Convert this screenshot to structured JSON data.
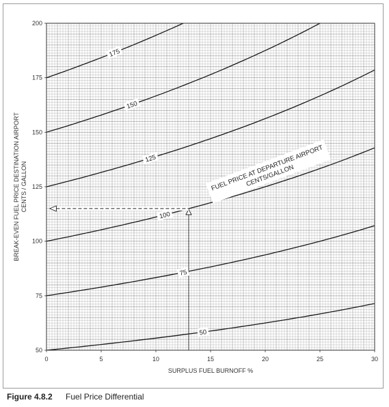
{
  "figure": {
    "number": "Figure 4.8.2",
    "title": "Fuel Price Differential"
  },
  "chart_data": {
    "type": "line",
    "title": "",
    "xlabel": "SURPLUS FUEL BURNOFF  %",
    "ylabel": "BREAK-EVEN FUEL PRICE DESTINATION AIRPORT\nCENTS / GALLON",
    "xlim": [
      0,
      30
    ],
    "ylim": [
      50,
      200
    ],
    "x_ticks": [
      0,
      5,
      10,
      15,
      20,
      25,
      30
    ],
    "y_ticks": [
      50,
      75,
      100,
      125,
      150,
      175,
      200
    ],
    "grid": true,
    "series_annotation": "FUEL PRICE AT DEPARTURE AIRPORT\nCENTS/GALLON",
    "x": [
      0,
      5,
      10,
      15,
      20,
      25,
      30
    ],
    "series": [
      {
        "name": "50",
        "values": [
          50,
          52.7,
          55.6,
          58.8,
          62.5,
          66.7,
          71.4
        ]
      },
      {
        "name": "75",
        "values": [
          75,
          78.9,
          83.3,
          88.2,
          93.8,
          100,
          107.1
        ]
      },
      {
        "name": "100",
        "values": [
          100,
          105.3,
          111.1,
          117.6,
          125,
          133.3,
          142.9
        ]
      },
      {
        "name": "125",
        "values": [
          125,
          131.6,
          138.9,
          147.1,
          156.3,
          166.7,
          178.6
        ]
      },
      {
        "name": "150",
        "values": [
          150,
          157.9,
          166.7,
          176.5,
          187.5,
          200,
          null
        ]
      },
      {
        "name": "175",
        "values": [
          175,
          184.2,
          194.4,
          null,
          null,
          null,
          null
        ]
      }
    ],
    "example": {
      "surplus_burnoff_pct": 13,
      "departure_price": 100,
      "breakeven_price": 115
    }
  }
}
